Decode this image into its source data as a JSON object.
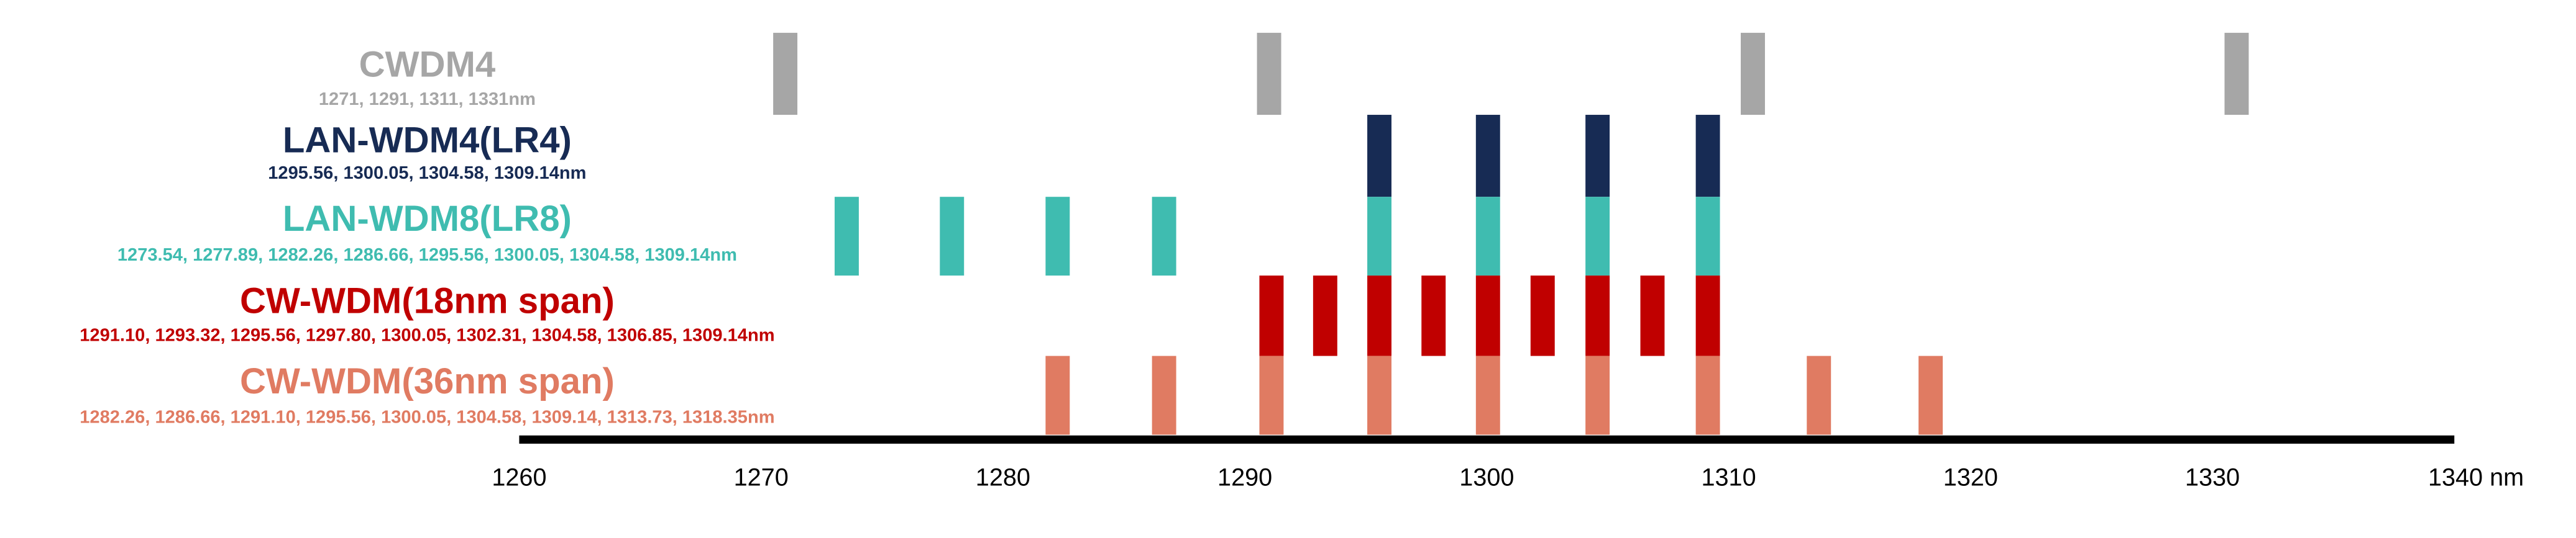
{
  "chart_data": {
    "type": "wavelength-grid",
    "xlim": [
      1260,
      1340
    ],
    "xticks": [
      1260,
      1270,
      1280,
      1290,
      1300,
      1310,
      1320,
      1330,
      {
        "value": 1340,
        "label": "1340 nm"
      }
    ],
    "series": [
      {
        "name": "CWDM4",
        "subtitle": "1271, 1291, 1311, 1331nm",
        "color": "#a6a6a6",
        "values": [
          1271,
          1291,
          1311,
          1331
        ]
      },
      {
        "name": "LAN-WDM4(LR4)",
        "subtitle": "1295.56, 1300.05, 1304.58, 1309.14nm",
        "color": "#172b54",
        "values": [
          1295.56,
          1300.05,
          1304.58,
          1309.14
        ]
      },
      {
        "name": "LAN-WDM8(LR8)",
        "subtitle": "1273.54, 1277.89, 1282.26, 1286.66, 1295.56, 1300.05, 1304.58, 1309.14nm",
        "color": "#3fbcb0",
        "values": [
          1273.54,
          1277.89,
          1282.26,
          1286.66,
          1295.56,
          1300.05,
          1304.58,
          1309.14
        ]
      },
      {
        "name": "CW-WDM(18nm span)",
        "subtitle": "1291.10, 1293.32, 1295.56, 1297.80, 1300.05, 1302.31, 1304.58, 1306.85, 1309.14nm",
        "color": "#c00000",
        "values": [
          1291.1,
          1293.32,
          1295.56,
          1297.8,
          1300.05,
          1302.31,
          1304.58,
          1306.85,
          1309.14
        ]
      },
      {
        "name": "CW-WDM(36nm span)",
        "subtitle": "1282.26, 1286.66, 1291.10, 1295.56, 1300.05, 1304.58, 1309.14, 1313.73, 1318.35nm",
        "color": "#e07b62",
        "values": [
          1282.26,
          1286.66,
          1291.1,
          1295.56,
          1300.05,
          1304.58,
          1309.14,
          1313.73,
          1318.35
        ]
      }
    ]
  }
}
